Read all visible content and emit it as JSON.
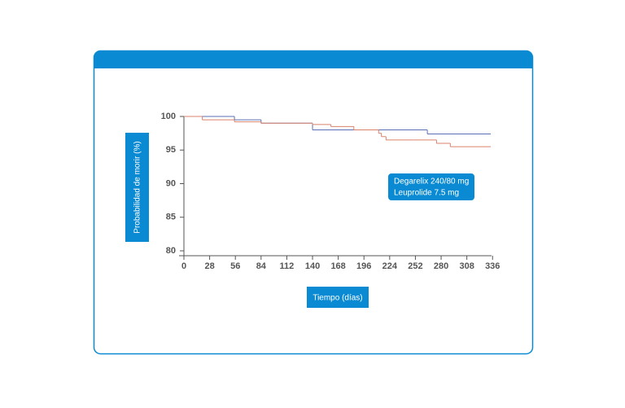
{
  "chart_data": {
    "type": "step",
    "x_label": "Tiempo (días)",
    "y_label": "Probabilidad de morir (%)",
    "series": [
      {
        "name": "Degarelix 240/80 mg",
        "color": "#5a6fb5",
        "x": [
          0,
          55,
          84,
          140,
          265,
          334
        ],
        "values": [
          100,
          99.5,
          99,
          98,
          97.4,
          97.4
        ]
      },
      {
        "name": "Leuprolide 7.5 mg",
        "color": "#d9826a",
        "x": [
          0,
          20,
          55,
          84,
          140,
          160,
          185,
          212,
          215,
          220,
          250,
          275,
          290,
          334
        ],
        "values": [
          100,
          99.5,
          99.2,
          99,
          98.8,
          98.5,
          98,
          97.5,
          97,
          96.5,
          96.5,
          96,
          95.5,
          95.5
        ]
      }
    ],
    "xlim": [
      0,
      334
    ],
    "xticks": [
      0,
      28,
      56,
      84,
      112,
      140,
      168,
      196,
      224,
      252,
      280,
      308,
      336
    ],
    "ylim": [
      80,
      100
    ],
    "yticks": [
      80,
      85,
      90,
      95,
      100
    ]
  }
}
